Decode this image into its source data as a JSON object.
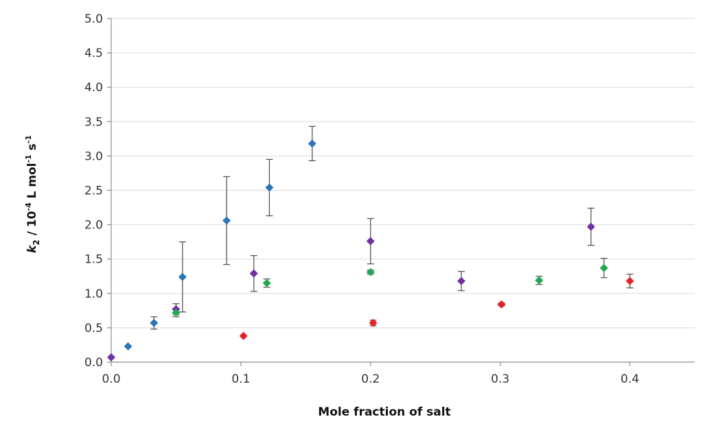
{
  "chart_data": {
    "type": "scatter",
    "xlabel": "Mole fraction of salt",
    "ylabel": {
      "symbol": "k",
      "subscript": "2",
      "rest_prefix": " / 10",
      "exp1": "-4",
      "mid": " L mol",
      "exp2": "-1",
      "mid2": " s",
      "exp3": "-1"
    },
    "xlim": [
      0.0,
      0.45
    ],
    "ylim": [
      0.0,
      5.0
    ],
    "x_ticks": [
      "0.0",
      "0.1",
      "0.2",
      "0.3",
      "0.4"
    ],
    "x_tick_values": [
      0.0,
      0.1,
      0.2,
      0.3,
      0.4
    ],
    "y_ticks": [
      "0.0",
      "0.5",
      "1.0",
      "1.5",
      "2.0",
      "2.5",
      "3.0",
      "3.5",
      "4.0",
      "4.5",
      "5.0"
    ],
    "y_tick_values": [
      0.0,
      0.5,
      1.0,
      1.5,
      2.0,
      2.5,
      3.0,
      3.5,
      4.0,
      4.5,
      5.0
    ],
    "grid": "horizontal",
    "series": [
      {
        "color": "#2e75b6",
        "points": [
          {
            "x": 0.013,
            "y": 0.23,
            "err": 0.0
          },
          {
            "x": 0.033,
            "y": 0.57,
            "err": 0.09
          },
          {
            "x": 0.055,
            "y": 1.24,
            "err": 0.51
          },
          {
            "x": 0.089,
            "y": 2.06,
            "err": 0.64
          },
          {
            "x": 0.122,
            "y": 2.54,
            "err": 0.41
          },
          {
            "x": 0.155,
            "y": 3.18,
            "err": 0.25
          }
        ]
      },
      {
        "color": "#7030a0",
        "points": [
          {
            "x": 0.0,
            "y": 0.07,
            "err": 0.0
          },
          {
            "x": 0.05,
            "y": 0.77,
            "err": 0.08
          },
          {
            "x": 0.11,
            "y": 1.29,
            "err": 0.26
          },
          {
            "x": 0.2,
            "y": 1.76,
            "err": 0.33
          },
          {
            "x": 0.27,
            "y": 1.18,
            "err": 0.14
          },
          {
            "x": 0.37,
            "y": 1.97,
            "err": 0.27
          }
        ]
      },
      {
        "color": "#22a855",
        "points": [
          {
            "x": 0.05,
            "y": 0.72,
            "err": 0.06
          },
          {
            "x": 0.12,
            "y": 1.15,
            "err": 0.06
          },
          {
            "x": 0.2,
            "y": 1.31,
            "err": 0.03
          },
          {
            "x": 0.33,
            "y": 1.19,
            "err": 0.06
          },
          {
            "x": 0.38,
            "y": 1.37,
            "err": 0.14
          }
        ]
      },
      {
        "color": "#e32227",
        "points": [
          {
            "x": 0.102,
            "y": 0.38,
            "err": 0.0
          },
          {
            "x": 0.202,
            "y": 0.57,
            "err": 0.04
          },
          {
            "x": 0.301,
            "y": 0.84,
            "err": 0.02
          },
          {
            "x": 0.4,
            "y": 1.18,
            "err": 0.1
          }
        ]
      }
    ]
  }
}
